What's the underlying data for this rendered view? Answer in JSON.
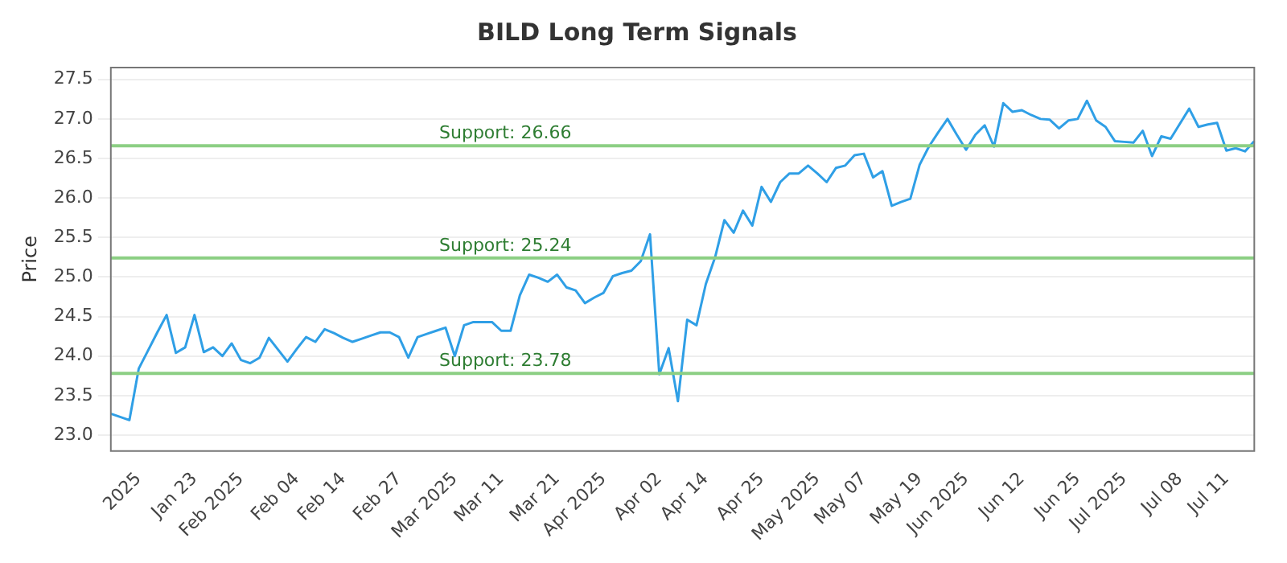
{
  "chart_data": {
    "type": "line",
    "title": "BILD Long Term Signals",
    "ylabel": "Price",
    "categories": [
      null,
      null,
      null,
      "2025",
      null,
      null,
      null,
      null,
      null,
      "Jan 23",
      null,
      null,
      null,
      null,
      "Feb 2025",
      null,
      null,
      null,
      null,
      null,
      "Feb 04",
      null,
      null,
      null,
      null,
      "Feb 14",
      null,
      null,
      null,
      null,
      null,
      "Feb 27",
      null,
      null,
      null,
      null,
      null,
      "Mar 2025",
      null,
      null,
      null,
      null,
      "Mar 11",
      null,
      null,
      null,
      null,
      null,
      "Mar 21",
      null,
      null,
      null,
      null,
      "Apr 2025",
      null,
      null,
      null,
      null,
      null,
      "Apr 02",
      null,
      null,
      null,
      null,
      "Apr 14",
      null,
      null,
      null,
      null,
      null,
      "Apr 25",
      null,
      null,
      null,
      null,
      null,
      "May 2025",
      null,
      null,
      null,
      null,
      "May 07",
      null,
      null,
      null,
      null,
      null,
      "May 19",
      null,
      null,
      null,
      null,
      "Jun 2025",
      null,
      null,
      null,
      null,
      null,
      "Jun 12",
      null,
      null,
      null,
      null,
      null,
      "Jun 25",
      null,
      null,
      null,
      null,
      "Jul 2025",
      null,
      null,
      null,
      null,
      null,
      "Jul 08",
      null,
      null,
      null,
      null,
      "Jul 11",
      null,
      null,
      null
    ],
    "series": [
      {
        "color": "#2f9fe6",
        "values": [
          23.27,
          23.23,
          23.19,
          23.84,
          24.07,
          24.3,
          24.52,
          24.04,
          24.11,
          24.52,
          24.05,
          24.11,
          24.0,
          24.16,
          23.95,
          23.91,
          23.98,
          24.23,
          24.08,
          23.93,
          24.09,
          24.24,
          24.18,
          24.34,
          24.29,
          24.23,
          24.18,
          24.22,
          24.26,
          24.3,
          24.3,
          24.24,
          23.98,
          24.24,
          24.28,
          24.32,
          24.36,
          24.0,
          24.39,
          24.43,
          24.43,
          24.43,
          24.32,
          24.32,
          24.77,
          25.03,
          24.99,
          24.94,
          25.03,
          24.87,
          24.83,
          24.67,
          24.74,
          24.8,
          25.01,
          25.05,
          25.08,
          25.2,
          25.54,
          23.77,
          24.1,
          23.43,
          24.46,
          24.39,
          24.91,
          25.25,
          25.72,
          25.56,
          25.84,
          25.65,
          26.14,
          25.95,
          26.2,
          26.31,
          26.31,
          26.41,
          26.31,
          26.2,
          26.38,
          26.41,
          26.54,
          26.56,
          26.26,
          26.34,
          25.9,
          25.95,
          25.99,
          26.42,
          26.65,
          26.83,
          27.0,
          26.8,
          26.61,
          26.8,
          26.92,
          26.65,
          27.2,
          27.09,
          27.11,
          27.05,
          27.0,
          26.99,
          26.88,
          26.98,
          27.0,
          27.23,
          26.98,
          26.9,
          26.72,
          26.71,
          26.7,
          26.85,
          26.53,
          26.78,
          26.75,
          26.94,
          27.13,
          26.9,
          26.93,
          26.95,
          26.6,
          26.63,
          26.59,
          26.72
        ]
      }
    ],
    "ylim": [
      22.8,
      27.65
    ],
    "yticks": [
      {
        "value": 23,
        "label": "23.0"
      },
      23.5,
      {
        "value": 24,
        "label": "24.0"
      },
      24.5,
      {
        "value": 25,
        "label": "25.0"
      },
      25.5,
      {
        "value": 26,
        "label": "26.0"
      },
      26.5,
      {
        "value": 27,
        "label": "27.0"
      },
      27.5
    ],
    "grid": "y",
    "legend": false,
    "marker": "none",
    "line_style": "solid",
    "ref_lines": [
      {
        "axis": "y",
        "value": 26.66,
        "label": "Support: 26.66",
        "color": "#8ccf84"
      },
      {
        "axis": "y",
        "value": 25.24,
        "label": "Support: 25.24",
        "color": "#8ccf84"
      },
      {
        "axis": "y",
        "value": 23.78,
        "label": "Support: 23.78",
        "color": "#8ccf84"
      }
    ]
  }
}
